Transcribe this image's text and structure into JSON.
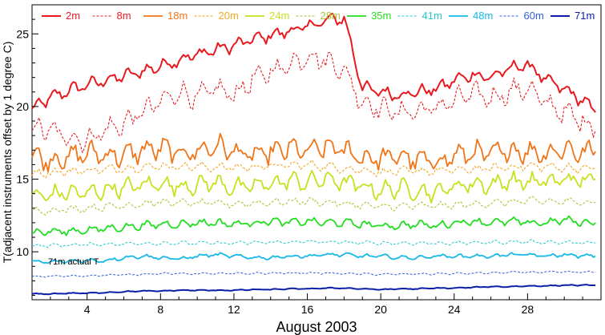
{
  "chart_data": {
    "type": "line",
    "xlabel": "August 2003",
    "ylabel": "T(adjacent instruments offset by 1 degree C)",
    "xlim": [
      1,
      32
    ],
    "ylim": [
      6.7,
      27
    ],
    "x_ticks": [
      4,
      8,
      12,
      16,
      20,
      24,
      28
    ],
    "y_ticks": [
      10,
      15,
      20,
      25
    ],
    "grid": false,
    "legend_position": "top",
    "annotation": "71m actual T",
    "series": [
      {
        "name": "2m",
        "color": "#e8191f",
        "dash": "solid",
        "width": 2.0,
        "x": [
          1,
          2,
          3,
          4,
          5,
          6,
          7,
          8,
          9,
          10,
          11,
          12,
          13,
          14,
          15,
          16,
          17,
          18,
          19,
          20,
          21,
          22,
          23,
          24,
          25,
          26,
          27,
          28,
          29,
          30,
          31,
          31.7
        ],
        "y": [
          19.8,
          20.6,
          21.1,
          21.5,
          21.8,
          22.1,
          22.4,
          22.8,
          23.2,
          23.6,
          23.9,
          24.2,
          24.6,
          24.9,
          25.2,
          25.5,
          25.9,
          26.1,
          21.3,
          21.0,
          20.8,
          21.0,
          21.2,
          21.8,
          22.2,
          22.0,
          22.6,
          22.9,
          21.8,
          21.2,
          20.4,
          19.6
        ]
      },
      {
        "name": "8m",
        "color": "#e8191f",
        "dash": "3,2",
        "width": 1.1,
        "x": [
          1,
          2,
          3,
          4,
          5,
          6,
          7,
          8,
          9,
          10,
          11,
          12,
          13,
          14,
          15,
          16,
          17,
          18,
          19,
          20,
          21,
          22,
          23,
          24,
          25,
          26,
          27,
          28,
          29,
          30,
          31,
          31.7
        ],
        "y": [
          18.6,
          18.3,
          17.9,
          17.7,
          18.4,
          18.8,
          19.6,
          20.3,
          21.0,
          20.6,
          21.2,
          20.8,
          21.8,
          22.4,
          22.9,
          23.5,
          23.2,
          22.5,
          20.3,
          19.9,
          19.6,
          19.7,
          19.9,
          20.4,
          20.9,
          20.6,
          21.0,
          21.3,
          20.2,
          19.6,
          19.0,
          18.4
        ]
      },
      {
        "name": "18m",
        "color": "#f07518",
        "dash": "solid",
        "width": 1.8,
        "x": [
          1,
          2,
          3,
          4,
          5,
          6,
          7,
          8,
          9,
          10,
          11,
          12,
          13,
          14,
          15,
          16,
          17,
          18,
          19,
          20,
          21,
          22,
          23,
          24,
          25,
          26,
          27,
          28,
          29,
          30,
          31,
          31.7
        ],
        "y": [
          16.6,
          16.3,
          16.5,
          16.8,
          16.7,
          16.6,
          17.0,
          17.1,
          16.8,
          16.9,
          17.3,
          16.9,
          16.6,
          16.8,
          17.1,
          16.9,
          17.2,
          17.0,
          16.5,
          16.4,
          16.6,
          16.3,
          16.2,
          16.6,
          16.8,
          16.7,
          17.0,
          16.9,
          16.8,
          17.1,
          16.8,
          16.9
        ]
      },
      {
        "name": "20m",
        "color": "#f5a623",
        "dash": "3,2",
        "width": 1.1,
        "x": [
          1,
          4,
          8,
          12,
          16,
          20,
          24,
          28,
          31.7
        ],
        "y": [
          15.4,
          15.6,
          15.9,
          15.8,
          16.0,
          15.5,
          15.6,
          15.9,
          15.7
        ]
      },
      {
        "name": "24m",
        "color": "#c8e01e",
        "dash": "solid",
        "width": 1.8,
        "x": [
          1,
          2,
          3,
          4,
          5,
          6,
          7,
          8,
          9,
          10,
          11,
          12,
          13,
          14,
          15,
          16,
          17,
          18,
          19,
          20,
          21,
          22,
          23,
          24,
          25,
          26,
          27,
          28,
          29,
          30,
          31,
          31.7
        ],
        "y": [
          13.8,
          13.9,
          14.1,
          14.0,
          14.3,
          14.4,
          14.6,
          14.7,
          14.5,
          14.6,
          14.8,
          14.4,
          14.5,
          14.7,
          14.9,
          14.8,
          15.0,
          14.8,
          14.5,
          14.2,
          14.4,
          14.2,
          14.1,
          14.5,
          14.7,
          14.6,
          14.9,
          14.8,
          14.8,
          15.0,
          14.9,
          15.0
        ]
      },
      {
        "name": "28m",
        "color": "#a8c83a",
        "dash": "3,2",
        "width": 1.1,
        "x": [
          1,
          4,
          8,
          12,
          16,
          20,
          24,
          28,
          31.7
        ],
        "y": [
          12.8,
          13.0,
          13.4,
          13.3,
          13.5,
          13.1,
          13.2,
          13.5,
          13.4
        ]
      },
      {
        "name": "35m",
        "color": "#22dd22",
        "dash": "solid",
        "width": 1.8,
        "x": [
          1,
          2,
          3,
          4,
          5,
          6,
          7,
          8,
          9,
          10,
          11,
          12,
          13,
          14,
          15,
          16,
          17,
          18,
          19,
          20,
          21,
          22,
          23,
          24,
          25,
          26,
          27,
          28,
          29,
          30,
          31,
          31.7
        ],
        "y": [
          11.3,
          11.4,
          11.4,
          11.5,
          11.6,
          11.7,
          11.8,
          11.9,
          11.9,
          12.0,
          12.0,
          11.9,
          12.0,
          12.1,
          12.0,
          12.1,
          12.0,
          12.0,
          11.9,
          11.8,
          11.8,
          11.9,
          11.8,
          12.0,
          12.1,
          12.0,
          12.1,
          12.0,
          12.0,
          12.2,
          12.0,
          12.0
        ]
      },
      {
        "name": "41m",
        "color": "#20c8cc",
        "dash": "3,2",
        "width": 1.0,
        "x": [
          1,
          4,
          8,
          12,
          16,
          20,
          24,
          28,
          31.7
        ],
        "y": [
          10.4,
          10.5,
          10.6,
          10.6,
          10.7,
          10.6,
          10.6,
          10.7,
          10.6
        ]
      },
      {
        "name": "48m",
        "color": "#18b8e8",
        "dash": "solid",
        "width": 1.8,
        "x": [
          1,
          2,
          3,
          4,
          5,
          6,
          7,
          8,
          9,
          10,
          11,
          12,
          13,
          14,
          15,
          16,
          17,
          18,
          19,
          20,
          21,
          22,
          23,
          24,
          25,
          26,
          27,
          28,
          29,
          30,
          31,
          31.7
        ],
        "y": [
          9.3,
          9.3,
          9.35,
          9.4,
          9.4,
          9.6,
          9.7,
          9.6,
          9.5,
          9.7,
          9.8,
          9.7,
          9.6,
          9.6,
          9.7,
          9.7,
          9.8,
          9.8,
          9.7,
          9.7,
          9.6,
          9.6,
          9.7,
          9.7,
          9.7,
          9.7,
          9.8,
          9.8,
          9.7,
          9.8,
          9.7,
          9.7
        ]
      },
      {
        "name": "60m",
        "color": "#2f5fd8",
        "dash": "3,2",
        "width": 1.0,
        "x": [
          1,
          4,
          8,
          12,
          16,
          20,
          24,
          28,
          31.7
        ],
        "y": [
          8.3,
          8.35,
          8.5,
          8.5,
          8.55,
          8.45,
          8.5,
          8.6,
          8.6
        ]
      },
      {
        "name": "71m",
        "color": "#0b1fa8",
        "dash": "solid",
        "width": 2.0,
        "x": [
          1,
          2,
          3,
          4,
          5,
          6,
          7,
          8,
          9,
          10,
          11,
          12,
          13,
          14,
          15,
          16,
          17,
          18,
          19,
          20,
          21,
          22,
          23,
          24,
          25,
          26,
          27,
          28,
          29,
          30,
          31,
          31.7
        ],
        "y": [
          7.1,
          7.1,
          7.15,
          7.15,
          7.2,
          7.25,
          7.3,
          7.3,
          7.35,
          7.35,
          7.35,
          7.35,
          7.4,
          7.4,
          7.45,
          7.45,
          7.5,
          7.5,
          7.45,
          7.4,
          7.45,
          7.45,
          7.5,
          7.5,
          7.55,
          7.6,
          7.6,
          7.65,
          7.65,
          7.7,
          7.7,
          7.7
        ]
      }
    ]
  }
}
